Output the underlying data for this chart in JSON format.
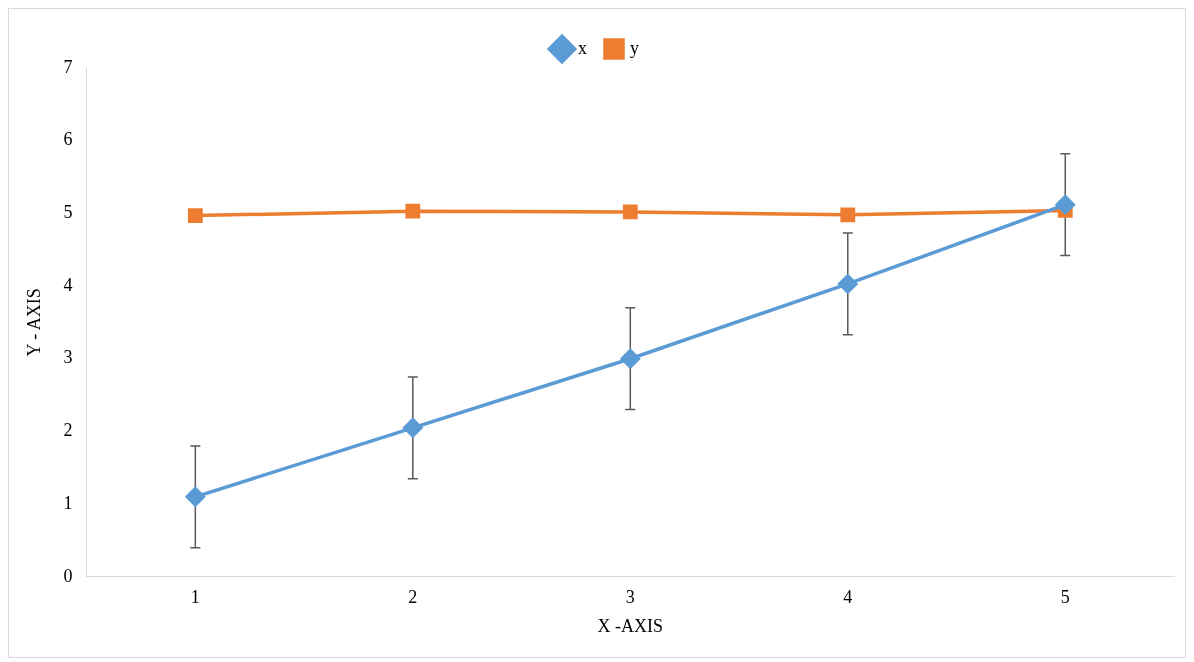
{
  "chart_data": {
    "type": "line",
    "xlabel": "X -AXIS",
    "ylabel": "Y - AXIS",
    "categories": [
      "1",
      "2",
      "3",
      "4",
      "5"
    ],
    "series": [
      {
        "name": "x",
        "color": "#5b9bd5",
        "marker": "diamond",
        "values": [
          1.1,
          2.05,
          3.0,
          4.03,
          5.12
        ],
        "errors": [
          0.7,
          0.7,
          0.7,
          0.7,
          0.7
        ]
      },
      {
        "name": "y",
        "color": "#ed7d31",
        "marker": "square",
        "values": [
          4.97,
          5.03,
          5.02,
          4.98,
          5.04
        ]
      }
    ],
    "ylim": [
      0,
      7
    ],
    "yticks": [
      0,
      1,
      2,
      3,
      4,
      5,
      6,
      7
    ],
    "grid": false,
    "legend": "top"
  }
}
